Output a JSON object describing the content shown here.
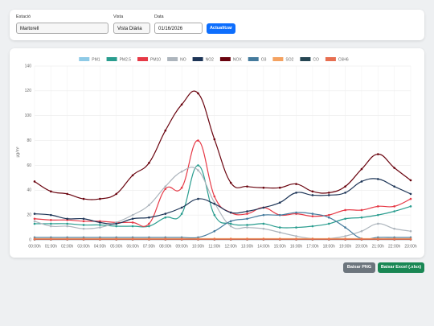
{
  "controls": {
    "station_label": "Estació",
    "station_value": "Martorell",
    "view_label": "Vista",
    "view_value": "Vista Diària",
    "date_label": "Data",
    "date_value": "01/16/2026",
    "update_button": "Actualitzar"
  },
  "chart_data": {
    "type": "line",
    "y_label": "µg/m³",
    "categories": [
      "00:00h",
      "01:00h",
      "02:00h",
      "03:00h",
      "04:00h",
      "05:00h",
      "06:00h",
      "07:00h",
      "08:00h",
      "09:00h",
      "10:00h",
      "11:00h",
      "12:00h",
      "13:00h",
      "14:00h",
      "15:00h",
      "16:00h",
      "17:00h",
      "18:00h",
      "19:00h",
      "20:00h",
      "21:00h",
      "22:00h",
      "23:00h"
    ],
    "ylim": [
      0,
      140
    ],
    "yticks": [
      0,
      20,
      40,
      60,
      80,
      100,
      120,
      140
    ],
    "grid": true,
    "series": [
      {
        "name": "PM1",
        "color": "#8ecae6",
        "values": [
          0.5,
          0.5,
          0.5,
          0.5,
          0.5,
          0.5,
          0.5,
          0.5,
          0.5,
          0.5,
          0.5,
          0.5,
          0.5,
          0.5,
          0.5,
          0.5,
          0.5,
          0.5,
          0.5,
          0.5,
          0.5,
          0.5,
          0.5,
          0.5
        ]
      },
      {
        "name": "PM2.5",
        "color": "#2a9d8f",
        "values": [
          13,
          13,
          13,
          12,
          12,
          11,
          11,
          11,
          18,
          21,
          60,
          20,
          13,
          12,
          13,
          10,
          10,
          11,
          13,
          17,
          18,
          20,
          23,
          27
        ]
      },
      {
        "name": "PM10",
        "color": "#e63946",
        "values": [
          17,
          16,
          16,
          15,
          15,
          14,
          14,
          13,
          41,
          42,
          80,
          35,
          22,
          21,
          26,
          20,
          21,
          19,
          20,
          24,
          24,
          27,
          27,
          33
        ]
      },
      {
        "name": "NO",
        "color": "#adb5bd",
        "values": [
          15,
          11,
          11,
          9,
          10,
          14,
          20,
          28,
          43,
          55,
          56,
          30,
          11,
          10,
          9,
          6,
          3,
          1,
          1,
          3,
          7,
          13,
          9,
          7
        ]
      },
      {
        "name": "NO2",
        "color": "#1d3557",
        "values": [
          21,
          20,
          17,
          17,
          14,
          13,
          17,
          18,
          21,
          26,
          33,
          29,
          22,
          23,
          26,
          30,
          38,
          36,
          36,
          38,
          47,
          49,
          43,
          37
        ]
      },
      {
        "name": "NOX",
        "color": "#6a040f",
        "values": [
          47,
          39,
          37,
          33,
          33,
          37,
          52,
          62,
          88,
          109,
          118,
          81,
          46,
          43,
          42,
          42,
          45,
          39,
          38,
          43,
          57,
          69,
          58,
          48
        ]
      },
      {
        "name": "O3",
        "color": "#457b9d",
        "values": [
          2,
          2,
          2,
          2,
          2,
          2,
          2,
          2,
          2,
          2,
          2,
          7,
          15,
          17,
          20,
          20,
          22,
          21,
          18,
          10,
          1,
          2,
          2,
          2
        ]
      },
      {
        "name": "SO2",
        "color": "#f4a261",
        "values": [
          1,
          1,
          1,
          1,
          1,
          1,
          1,
          1,
          1,
          1,
          1,
          1,
          1,
          1,
          1,
          1,
          1,
          1,
          1,
          1,
          1,
          1,
          1,
          1
        ]
      },
      {
        "name": "CO",
        "color": "#264653",
        "values": [
          0.3,
          0.3,
          0.3,
          0.3,
          0.3,
          0.3,
          0.3,
          0.3,
          0.3,
          0.3,
          0.3,
          0.3,
          0.3,
          0.3,
          0.3,
          0.3,
          0.3,
          0.3,
          0.3,
          0.3,
          0.3,
          0.3,
          0.3,
          0.3
        ]
      },
      {
        "name": "C6H6",
        "color": "#e76f51",
        "values": [
          0.5,
          0.5,
          0.5,
          0.5,
          0.5,
          0.5,
          0.5,
          0.5,
          0.5,
          0.5,
          0.5,
          0.5,
          0.5,
          0.5,
          0.5,
          0.5,
          0.5,
          0.5,
          0.5,
          0.5,
          0.5,
          0.5,
          0.5,
          0.5
        ]
      }
    ]
  },
  "actions": {
    "png_button": "Baixar PNG",
    "excel_button": "Baixar Excel (.xlsx)"
  }
}
